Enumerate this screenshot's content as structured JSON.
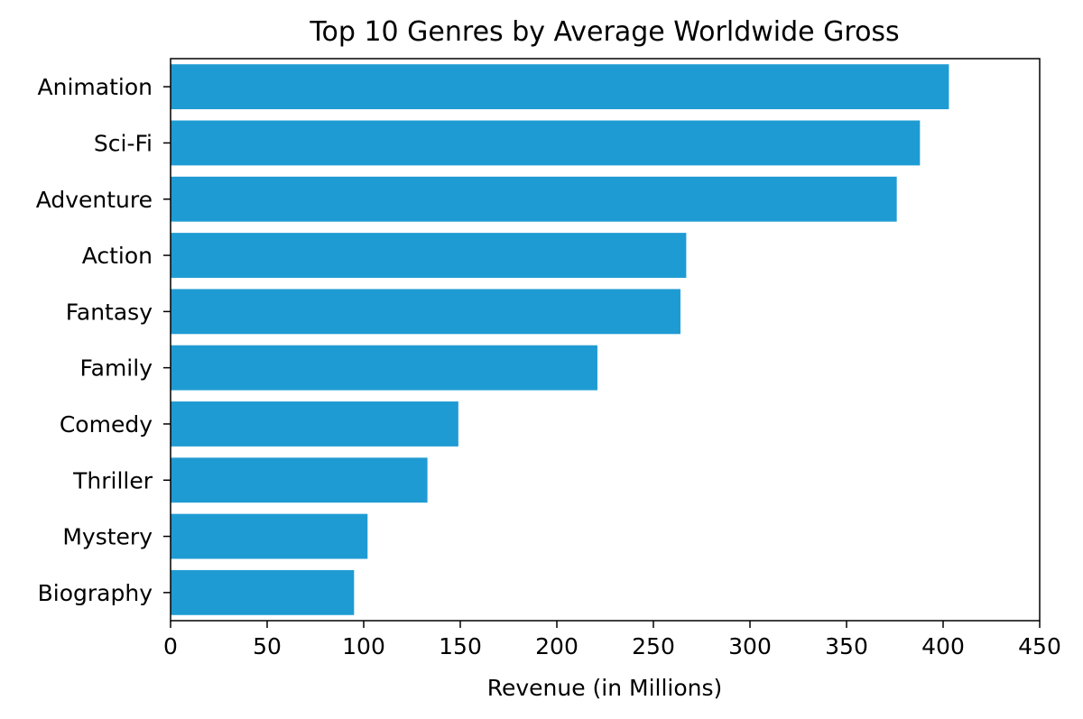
{
  "chart_data": {
    "type": "bar",
    "orientation": "horizontal",
    "title": "Top 10 Genres by Average Worldwide Gross",
    "xlabel": "Revenue (in Millions)",
    "ylabel": "",
    "categories": [
      "Animation",
      "Sci-Fi",
      "Adventure",
      "Action",
      "Fantasy",
      "Family",
      "Comedy",
      "Thriller",
      "Mystery",
      "Biography"
    ],
    "values": [
      403,
      388,
      376,
      267,
      264,
      221,
      149,
      133,
      102,
      95
    ],
    "xlim": [
      0,
      450
    ],
    "xticks": [
      "0",
      "50",
      "100",
      "150",
      "200",
      "250",
      "300",
      "350",
      "400",
      "450"
    ],
    "bar_color": "#1f9bd3",
    "grid": false,
    "legend": "none"
  }
}
